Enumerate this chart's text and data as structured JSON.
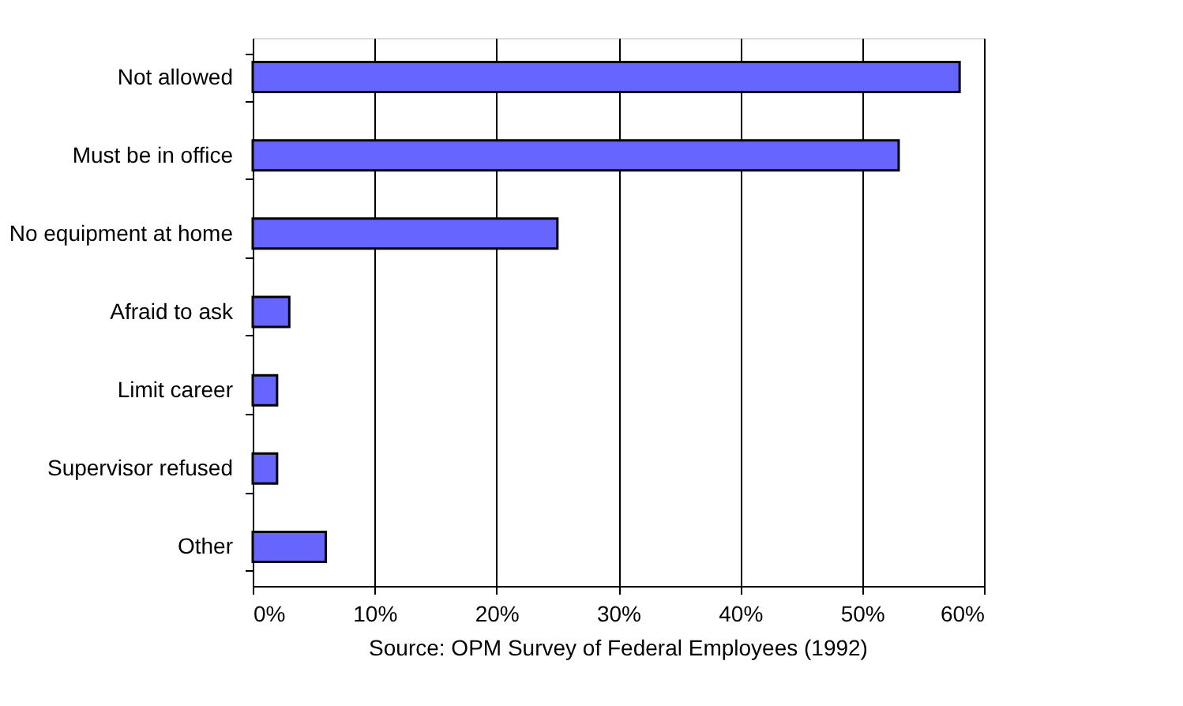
{
  "chart_data": {
    "type": "bar",
    "orientation": "horizontal",
    "categories": [
      "Not allowed",
      "Must be in office",
      "No equipment at home",
      "Afraid to ask",
      "Limit career",
      "Supervisor refused",
      "Other"
    ],
    "values": [
      58,
      53,
      25,
      3,
      2,
      2,
      6
    ],
    "color": "#6666ff",
    "xlim": [
      0,
      60
    ],
    "xticks": [
      {
        "value": 0,
        "label": "0%"
      },
      {
        "value": 10,
        "label": "10%"
      },
      {
        "value": 20,
        "label": "20%"
      },
      {
        "value": 30,
        "label": "30%"
      },
      {
        "value": 40,
        "label": "40%"
      },
      {
        "value": 50,
        "label": "50%"
      },
      {
        "value": 60,
        "label": "60%"
      }
    ],
    "grid": "x",
    "annotations": [
      "Source:  OPM Survey of Federal Employees (1992)"
    ]
  }
}
